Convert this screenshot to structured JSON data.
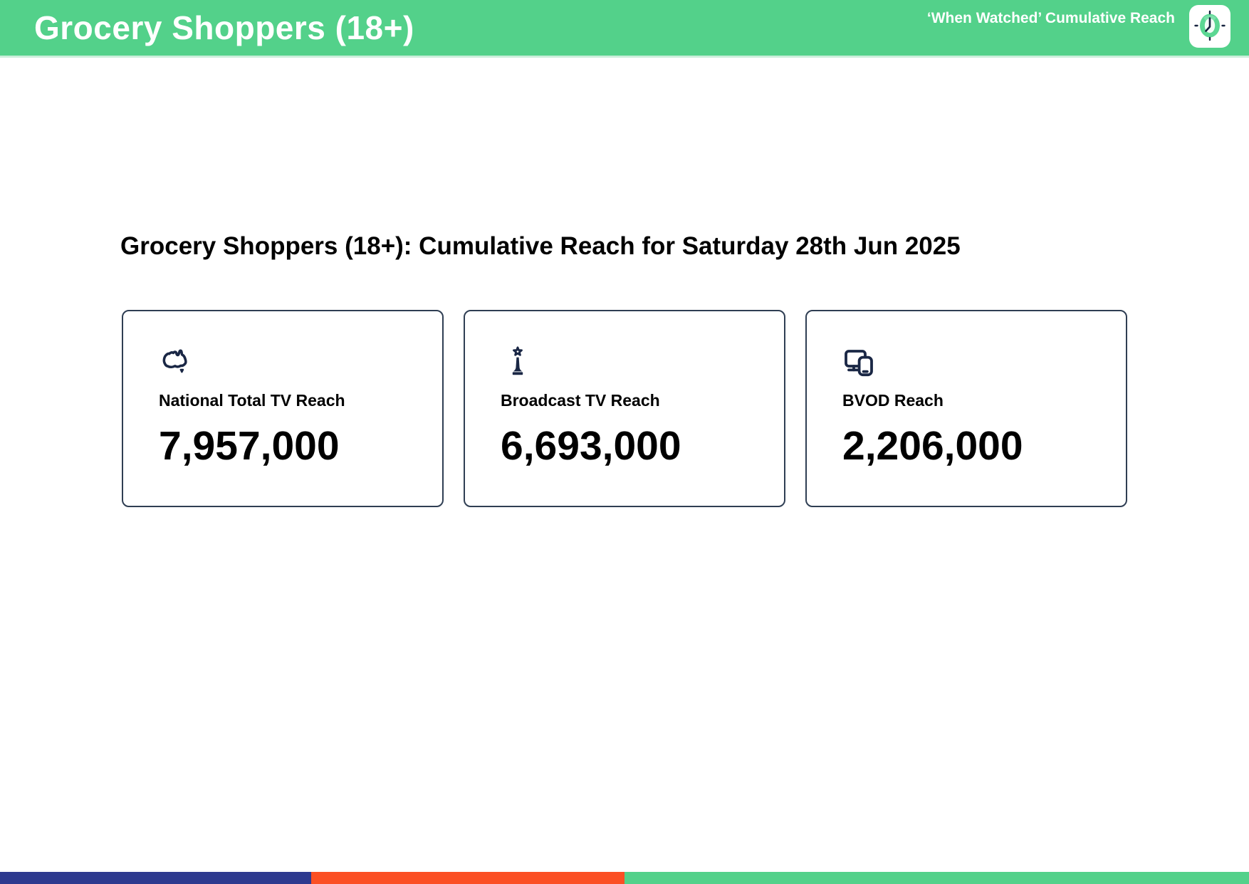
{
  "header": {
    "title": "Grocery Shoppers (18+)",
    "tagline": "‘When Watched’ Cumulative Reach",
    "background_color": "#53d18a",
    "logo_icon": "clock-icon"
  },
  "main": {
    "heading": "Grocery Shoppers (18+): Cumulative Reach for Saturday 28th Jun 2025",
    "cards": [
      {
        "icon": "australia-map-icon",
        "label": "National Total TV Reach",
        "value": "7,957,000"
      },
      {
        "icon": "broadcast-tower-star-icon",
        "label": "Broadcast TV Reach",
        "value": "6,693,000"
      },
      {
        "icon": "tv-and-phone-devices-icon",
        "label": "BVOD Reach",
        "value": "2,206,000"
      }
    ]
  },
  "footer_bar": {
    "segments": [
      {
        "name": "blue",
        "color": "#2e3a8f",
        "width_pct": 24.9
      },
      {
        "name": "orange",
        "color": "#fb4f24",
        "width_pct": 25.1
      },
      {
        "name": "green",
        "color": "#53d18a",
        "width_pct": 50.0
      }
    ]
  },
  "colors": {
    "accent_green": "#53d18a",
    "icon_navy": "#1a2745",
    "card_border": "#2f3e53"
  }
}
